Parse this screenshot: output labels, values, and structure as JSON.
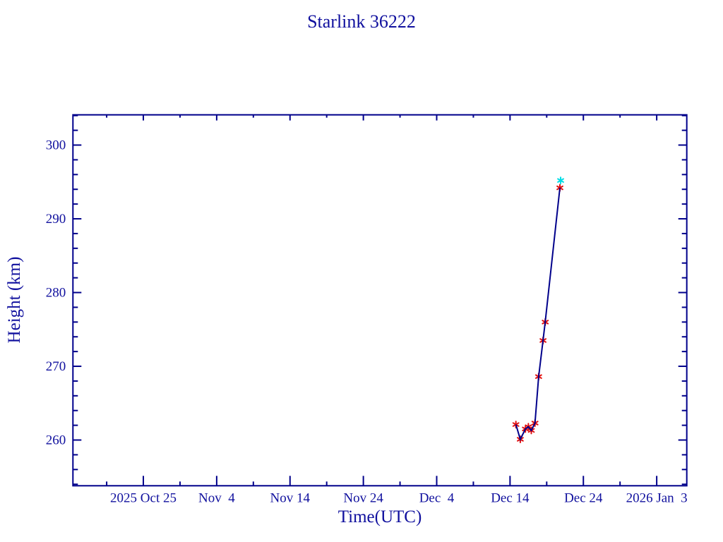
{
  "page": {
    "background": "#ffffff",
    "frame_color": "#00008b",
    "text_color": "#10109e"
  },
  "chart_data": {
    "type": "line",
    "title": "Starlink 36222",
    "xlabel": "Time(UTC)",
    "ylabel": "Height (km)",
    "grid": false,
    "legend": "none",
    "x_axis": {
      "unit": "days relative to 2025 Oct 25",
      "lim": [
        -9.6,
        74.1
      ],
      "minor_tick_step_days": 5,
      "major_ticks": [
        {
          "x": 0,
          "label": "2025 Oct 25"
        },
        {
          "x": 10,
          "label": "Nov  4"
        },
        {
          "x": 20,
          "label": "Nov 14"
        },
        {
          "x": 30,
          "label": "Nov 24"
        },
        {
          "x": 40,
          "label": "Dec  4"
        },
        {
          "x": 50,
          "label": "Dec 14"
        },
        {
          "x": 60,
          "label": "Dec 24"
        },
        {
          "x": 70,
          "label": "2026 Jan  3"
        }
      ]
    },
    "y_axis": {
      "unit": "km",
      "lim": [
        253.8,
        304.1
      ],
      "minor_tick_step_km": 2,
      "major_ticks": [
        260,
        270,
        280,
        290,
        300
      ]
    },
    "series": [
      {
        "name": "observed-height",
        "marker": "asterisk",
        "marker_color": "#e01010",
        "line_color": "#00008b",
        "connected": true,
        "points": [
          {
            "x": 50.8,
            "height_km": 262.1
          },
          {
            "x": 51.4,
            "height_km": 260.1
          },
          {
            "x": 52.1,
            "height_km": 261.5
          },
          {
            "x": 52.5,
            "height_km": 261.8
          },
          {
            "x": 52.9,
            "height_km": 261.3
          },
          {
            "x": 53.4,
            "height_km": 262.3
          },
          {
            "x": 53.9,
            "height_km": 268.6
          },
          {
            "x": 54.5,
            "height_km": 273.5
          },
          {
            "x": 54.8,
            "height_km": 276.0
          },
          {
            "x": 56.8,
            "height_km": 294.2
          }
        ]
      },
      {
        "name": "latest-height",
        "marker": "asterisk",
        "marker_color": "#00dde6",
        "connected": false,
        "points": [
          {
            "x": 56.9,
            "height_km": 295.2
          }
        ]
      }
    ]
  }
}
